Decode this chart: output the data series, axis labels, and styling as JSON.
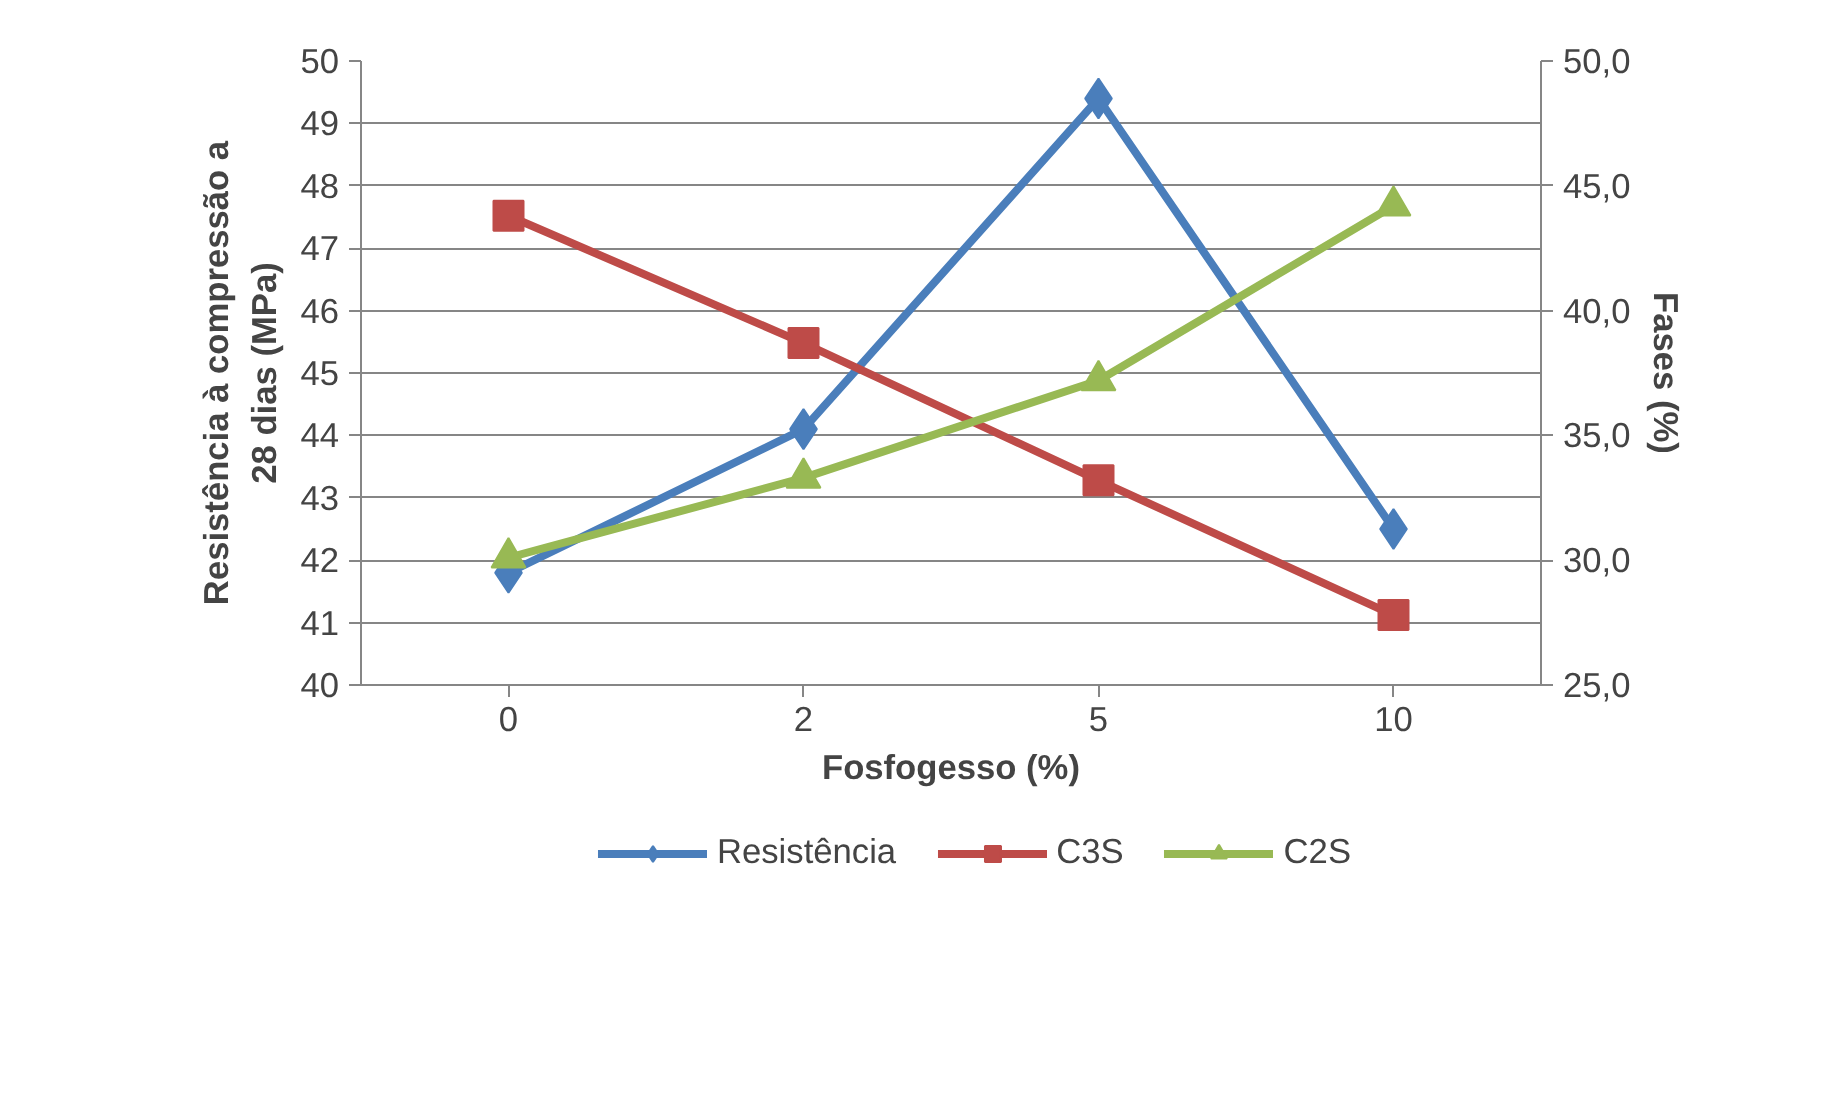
{
  "chart_data": {
    "type": "line",
    "categories": [
      "0",
      "2",
      "5",
      "10"
    ],
    "xlabel": "Fosfogesso (%)",
    "ylabel": "Resistência à compressão a 28 dias (MPa)",
    "y2label": "Fases (%)",
    "ylim": [
      40,
      50
    ],
    "yticks": [
      40,
      41,
      42,
      43,
      44,
      45,
      46,
      47,
      48,
      49,
      50
    ],
    "y2lim": [
      25,
      50
    ],
    "y2ticks": [
      {
        "value": 25,
        "label": "25,0"
      },
      {
        "value": 30,
        "label": "30,0"
      },
      {
        "value": 35,
        "label": "35,0"
      },
      {
        "value": 40,
        "label": "40,0"
      },
      {
        "value": 45,
        "label": "45,0"
      },
      {
        "value": 50,
        "label": "50,0"
      }
    ],
    "grid": "y",
    "legend": "bottom",
    "series": [
      {
        "name": "Resistência",
        "color": "#4a7ebb",
        "marker": "diamond",
        "values": [
          41.8,
          44.1,
          49.4,
          42.5
        ]
      },
      {
        "name": "C3S",
        "color": "#be4b48",
        "marker": "square",
        "axis": "y2",
        "values": [
          43.8,
          38.7,
          33.2,
          27.8
        ]
      },
      {
        "name": "C2S",
        "color": "#98b954",
        "marker": "triangle",
        "axis": "y2",
        "values": [
          30.1,
          33.3,
          37.2,
          44.2
        ]
      }
    ]
  }
}
